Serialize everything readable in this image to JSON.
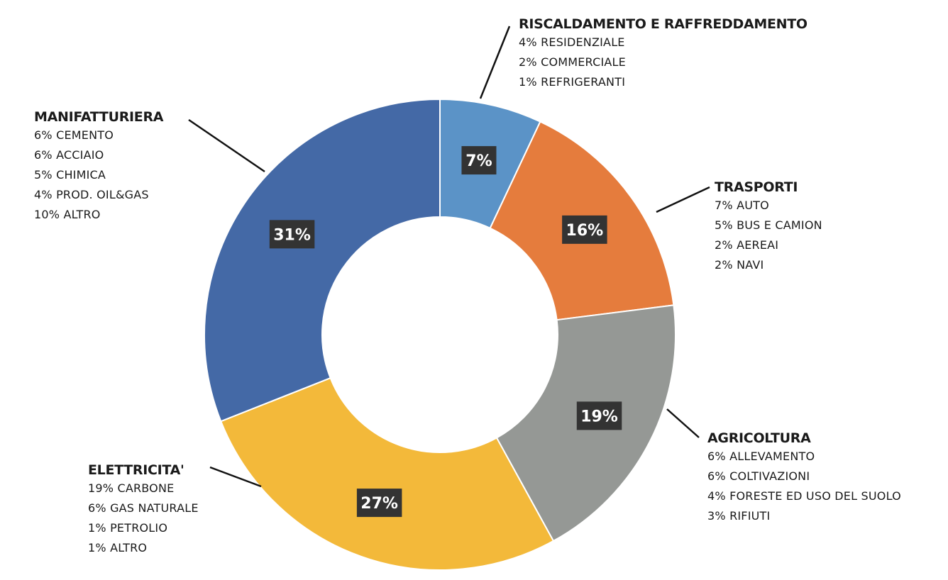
{
  "chart_data": {
    "type": "pie",
    "donut": true,
    "legend": "none",
    "slices": [
      {
        "category": "RISCALDAMENTO E RAFFREDDAMENTO",
        "value": 7,
        "label": "7%",
        "color": "#5b93c7",
        "items": [
          "4% RESIDENZIALE",
          "2% COMMERCIALE",
          "1% REFRIGERANTI"
        ]
      },
      {
        "category": "TRASPORTI",
        "value": 16,
        "label": "16%",
        "color": "#e57c3d",
        "items": [
          "7% AUTO",
          "5% BUS E CAMION",
          "2% AEREAI",
          "2% NAVI"
        ]
      },
      {
        "category": "AGRICOLTURA",
        "value": 19,
        "label": "19%",
        "color": "#959895",
        "items": [
          "6% ALLEVAMENTO",
          "6% COLTIVAZIONI",
          "4% FORESTE ED USO DEL SUOLO",
          "3% RIFIUTI"
        ]
      },
      {
        "category": "ELETTRICITA'",
        "value": 27,
        "label": "27%",
        "color": "#f3b93a",
        "items": [
          "19% CARBONE",
          "6% GAS NATURALE",
          "1% PETROLIO",
          "1% ALTRO"
        ]
      },
      {
        "category": "MANIFATTURIERA",
        "value": 31,
        "label": "31%",
        "color": "#4469a6",
        "items": [
          "6% CEMENTO",
          "6% ACCIAIO",
          "5% CHIMICA",
          "4% PROD. OIL&GAS",
          "10% ALTRO"
        ]
      }
    ]
  }
}
